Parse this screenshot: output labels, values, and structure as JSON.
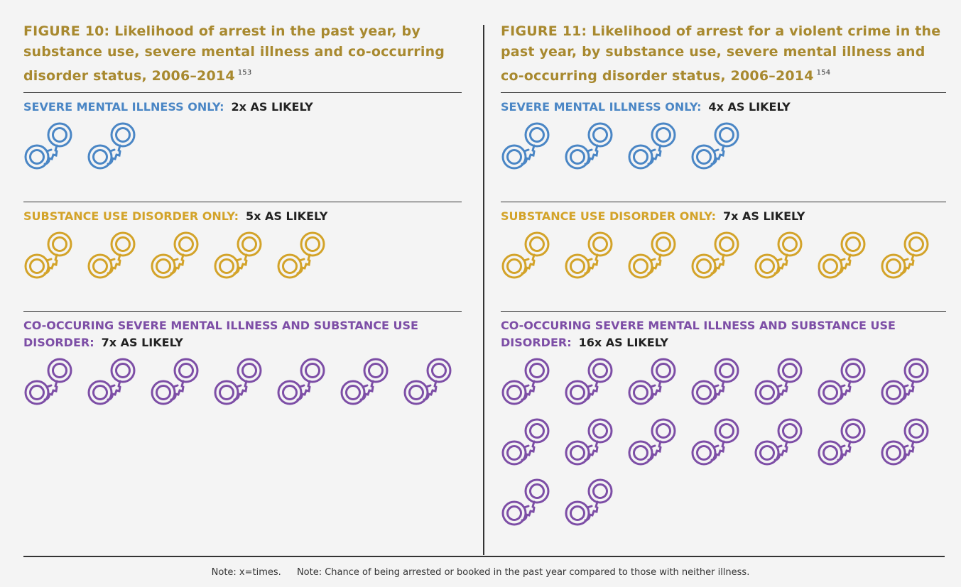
{
  "chart_data": [
    {
      "type": "pictograph",
      "title": "FIGURE 10: Likelihood of arrest in the past year, by substance use, severe mental illness and co-occurring disorder status, 2006–2014",
      "title_ref": "153",
      "categories": [
        "SEVERE MENTAL ILLNESS ONLY:",
        "SUBSTANCE USE DISORDER ONLY:",
        "CO-OCCURING SEVERE MENTAL ILLNESS AND SUBSTANCE USE DISORDER:"
      ],
      "values": [
        2,
        5,
        7
      ],
      "value_labels": [
        "2x AS LIKELY",
        "5x AS LIKELY",
        "7x AS LIKELY"
      ],
      "colors": [
        "#4a86c5",
        "#d3a329",
        "#7d4ea6"
      ]
    },
    {
      "type": "pictograph",
      "title": "FIGURE 11: Likelihood of arrest for a violent crime in the past year, by substance use, severe mental illness and co-occurring disorder status, 2006–2014",
      "title_ref": "154",
      "categories": [
        "SEVERE MENTAL ILLNESS ONLY:",
        "SUBSTANCE USE DISORDER ONLY:",
        "CO-OCCURING SEVERE MENTAL ILLNESS AND SUBSTANCE USE DISORDER:"
      ],
      "values": [
        4,
        7,
        16
      ],
      "value_labels": [
        "4x AS LIKELY",
        "7x AS LIKELY",
        "16x AS LIKELY"
      ],
      "colors": [
        "#4a86c5",
        "#d3a329",
        "#7d4ea6"
      ]
    }
  ],
  "notes": [
    "Note: x=times.",
    "Note: Chance of being arrested or booked in the past year compared to those with neither illness."
  ]
}
